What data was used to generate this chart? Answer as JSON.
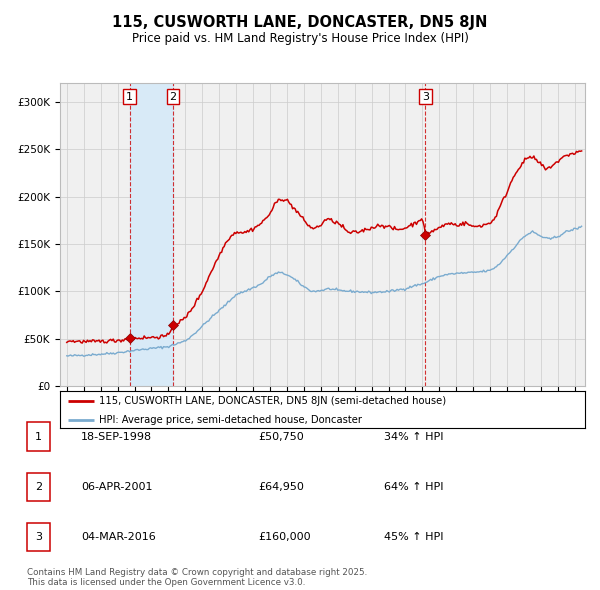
{
  "title": "115, CUSWORTH LANE, DONCASTER, DN5 8JN",
  "subtitle": "Price paid vs. HM Land Registry's House Price Index (HPI)",
  "legend_line1": "115, CUSWORTH LANE, DONCASTER, DN5 8JN (semi-detached house)",
  "legend_line2": "HPI: Average price, semi-detached house, Doncaster",
  "red_line_color": "#cc0000",
  "blue_line_color": "#7aabcf",
  "background_color": "#ffffff",
  "plot_bg_color": "#f0f0f0",
  "shade_color": "#d8eaf7",
  "grid_color": "#cccccc",
  "transactions": [
    {
      "num": 1,
      "date": "18-SEP-1998",
      "price": 50750,
      "year": 1998.72,
      "pct": "34% ↑ HPI"
    },
    {
      "num": 2,
      "date": "06-APR-2001",
      "price": 64950,
      "year": 2001.27,
      "pct": "64% ↑ HPI"
    },
    {
      "num": 3,
      "date": "04-MAR-2016",
      "price": 160000,
      "year": 2016.17,
      "pct": "45% ↑ HPI"
    }
  ],
  "footer": "Contains HM Land Registry data © Crown copyright and database right 2025.\nThis data is licensed under the Open Government Licence v3.0.",
  "ylim": [
    0,
    320000
  ],
  "xlim_start": 1994.6,
  "xlim_end": 2025.6,
  "hpi_anchors": [
    [
      1995.0,
      32000
    ],
    [
      1996.0,
      33000
    ],
    [
      1997.0,
      34000
    ],
    [
      1998.0,
      35500
    ],
    [
      1999.0,
      38000
    ],
    [
      2000.0,
      40000
    ],
    [
      2001.0,
      42000
    ],
    [
      2002.0,
      48000
    ],
    [
      2002.5,
      55000
    ],
    [
      2003.5,
      72000
    ],
    [
      2004.5,
      88000
    ],
    [
      2005.0,
      97000
    ],
    [
      2005.5,
      100000
    ],
    [
      2006.5,
      108000
    ],
    [
      2007.0,
      116000
    ],
    [
      2007.5,
      120000
    ],
    [
      2008.0,
      118000
    ],
    [
      2008.5,
      112000
    ],
    [
      2009.0,
      105000
    ],
    [
      2009.5,
      100000
    ],
    [
      2010.0,
      101000
    ],
    [
      2010.5,
      103000
    ],
    [
      2011.0,
      101000
    ],
    [
      2012.0,
      100000
    ],
    [
      2013.0,
      99000
    ],
    [
      2014.0,
      100000
    ],
    [
      2015.0,
      103000
    ],
    [
      2015.5,
      106000
    ],
    [
      2016.0,
      108000
    ],
    [
      2016.5,
      112000
    ],
    [
      2017.0,
      116000
    ],
    [
      2017.5,
      118000
    ],
    [
      2018.0,
      119000
    ],
    [
      2019.0,
      120000
    ],
    [
      2020.0,
      122000
    ],
    [
      2020.5,
      128000
    ],
    [
      2021.0,
      138000
    ],
    [
      2021.5,
      148000
    ],
    [
      2022.0,
      158000
    ],
    [
      2022.5,
      163000
    ],
    [
      2023.0,
      158000
    ],
    [
      2023.5,
      155000
    ],
    [
      2024.0,
      158000
    ],
    [
      2024.5,
      163000
    ],
    [
      2025.4,
      168000
    ]
  ],
  "prop_anchors": [
    [
      1995.0,
      48000
    ],
    [
      1995.5,
      47500
    ],
    [
      1996.0,
      47200
    ],
    [
      1996.5,
      47000
    ],
    [
      1997.0,
      47500
    ],
    [
      1997.5,
      48000
    ],
    [
      1998.0,
      48500
    ],
    [
      1998.5,
      49500
    ],
    [
      1998.72,
      50750
    ],
    [
      1999.0,
      51000
    ],
    [
      1999.5,
      51200
    ],
    [
      2000.0,
      51500
    ],
    [
      2000.5,
      52500
    ],
    [
      2001.0,
      53000
    ],
    [
      2001.27,
      64950
    ],
    [
      2001.5,
      66000
    ],
    [
      2002.0,
      72000
    ],
    [
      2002.5,
      85000
    ],
    [
      2003.0,
      100000
    ],
    [
      2003.5,
      120000
    ],
    [
      2004.0,
      138000
    ],
    [
      2004.5,
      155000
    ],
    [
      2005.0,
      163000
    ],
    [
      2005.5,
      162000
    ],
    [
      2006.0,
      166000
    ],
    [
      2006.5,
      172000
    ],
    [
      2007.0,
      182000
    ],
    [
      2007.3,
      192000
    ],
    [
      2007.6,
      198000
    ],
    [
      2008.0,
      196000
    ],
    [
      2008.3,
      190000
    ],
    [
      2008.7,
      182000
    ],
    [
      2009.0,
      175000
    ],
    [
      2009.3,
      169000
    ],
    [
      2009.6,
      166000
    ],
    [
      2010.0,
      170000
    ],
    [
      2010.3,
      176000
    ],
    [
      2010.6,
      175000
    ],
    [
      2011.0,
      172000
    ],
    [
      2011.3,
      168000
    ],
    [
      2011.6,
      162000
    ],
    [
      2012.0,
      162000
    ],
    [
      2012.3,
      163000
    ],
    [
      2012.6,
      165000
    ],
    [
      2013.0,
      167000
    ],
    [
      2013.3,
      169000
    ],
    [
      2013.6,
      170000
    ],
    [
      2014.0,
      168000
    ],
    [
      2014.3,
      166000
    ],
    [
      2014.6,
      165000
    ],
    [
      2015.0,
      167000
    ],
    [
      2015.3,
      170000
    ],
    [
      2015.6,
      172000
    ],
    [
      2016.0,
      178000
    ],
    [
      2016.17,
      160000
    ],
    [
      2016.5,
      163000
    ],
    [
      2017.0,
      167000
    ],
    [
      2017.3,
      170000
    ],
    [
      2017.6,
      172000
    ],
    [
      2018.0,
      170000
    ],
    [
      2018.3,
      171000
    ],
    [
      2018.6,
      172000
    ],
    [
      2019.0,
      168000
    ],
    [
      2019.3,
      169000
    ],
    [
      2019.6,
      170000
    ],
    [
      2020.0,
      172000
    ],
    [
      2020.3,
      178000
    ],
    [
      2020.6,
      190000
    ],
    [
      2021.0,
      205000
    ],
    [
      2021.3,
      218000
    ],
    [
      2021.6,
      228000
    ],
    [
      2022.0,
      237000
    ],
    [
      2022.3,
      242000
    ],
    [
      2022.6,
      240000
    ],
    [
      2023.0,
      234000
    ],
    [
      2023.3,
      228000
    ],
    [
      2023.6,
      232000
    ],
    [
      2024.0,
      237000
    ],
    [
      2024.3,
      241000
    ],
    [
      2024.6,
      244000
    ],
    [
      2025.0,
      246000
    ],
    [
      2025.4,
      248000
    ]
  ]
}
